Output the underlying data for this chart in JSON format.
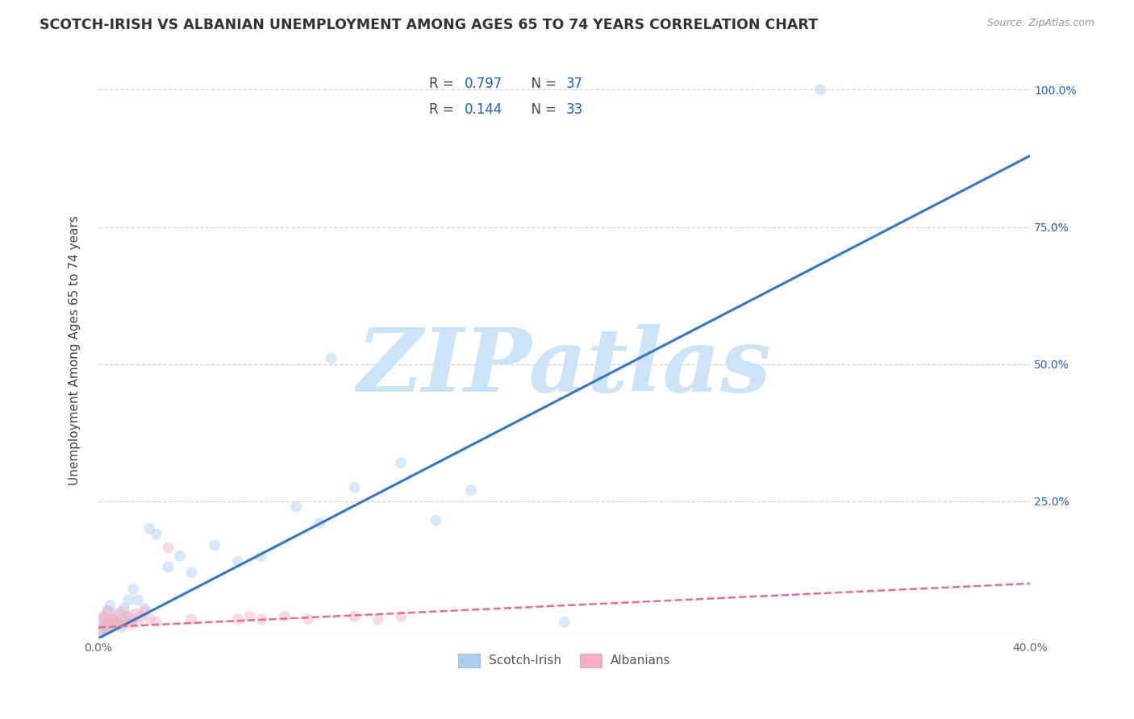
{
  "title": "SCOTCH-IRISH VS ALBANIAN UNEMPLOYMENT AMONG AGES 65 TO 74 YEARS CORRELATION CHART",
  "source": "Source: ZipAtlas.com",
  "ylabel": "Unemployment Among Ages 65 to 74 years",
  "xlim": [
    0.0,
    0.4
  ],
  "ylim": [
    0.0,
    1.05
  ],
  "xticks": [
    0.0,
    0.1,
    0.2,
    0.3,
    0.4
  ],
  "xticklabels": [
    "0.0%",
    "",
    "",
    "",
    "40.0%"
  ],
  "yticks": [
    0.0,
    0.25,
    0.5,
    0.75,
    1.0
  ],
  "yticklabels_left": [
    "",
    "",
    "",
    "",
    ""
  ],
  "yticklabels_right": [
    "",
    "25.0%",
    "50.0%",
    "75.0%",
    "100.0%"
  ],
  "background_color": "#ffffff",
  "grid_color": "#c8c8c8",
  "watermark_text": "ZIPatlas",
  "watermark_color": "#cce4f7",
  "scotch_irish_R": "0.797",
  "scotch_irish_N": "37",
  "albanian_R": "0.144",
  "albanian_N": "33",
  "scotch_irish_color": "#a8cef5",
  "albanian_color": "#f5afc0",
  "scotch_irish_line_color": "#3575c8",
  "albanian_line_color": "#e07090",
  "legend_color": "#2060c8",
  "scotch_irish_x": [
    0.001,
    0.002,
    0.002,
    0.003,
    0.003,
    0.004,
    0.004,
    0.005,
    0.005,
    0.006,
    0.007,
    0.008,
    0.009,
    0.01,
    0.011,
    0.012,
    0.013,
    0.015,
    0.017,
    0.02,
    0.022,
    0.025,
    0.03,
    0.035,
    0.04,
    0.05,
    0.06,
    0.07,
    0.085,
    0.095,
    0.1,
    0.11,
    0.13,
    0.145,
    0.16,
    0.2,
    0.31
  ],
  "scotch_irish_y": [
    0.01,
    0.02,
    0.035,
    0.015,
    0.04,
    0.025,
    0.05,
    0.02,
    0.06,
    0.035,
    0.025,
    0.03,
    0.045,
    0.02,
    0.055,
    0.04,
    0.07,
    0.09,
    0.07,
    0.055,
    0.2,
    0.19,
    0.13,
    0.15,
    0.12,
    0.17,
    0.14,
    0.15,
    0.24,
    0.21,
    0.51,
    0.275,
    0.32,
    0.215,
    0.27,
    0.03,
    1.0
  ],
  "albanian_x": [
    0.001,
    0.002,
    0.002,
    0.003,
    0.004,
    0.005,
    0.005,
    0.006,
    0.007,
    0.008,
    0.009,
    0.01,
    0.011,
    0.012,
    0.013,
    0.014,
    0.015,
    0.016,
    0.017,
    0.018,
    0.02,
    0.022,
    0.025,
    0.03,
    0.04,
    0.06,
    0.065,
    0.07,
    0.08,
    0.09,
    0.11,
    0.12,
    0.13
  ],
  "albanian_y": [
    0.015,
    0.025,
    0.04,
    0.035,
    0.05,
    0.02,
    0.03,
    0.035,
    0.045,
    0.03,
    0.025,
    0.035,
    0.05,
    0.03,
    0.04,
    0.025,
    0.035,
    0.045,
    0.03,
    0.04,
    0.05,
    0.035,
    0.03,
    0.165,
    0.035,
    0.035,
    0.04,
    0.035,
    0.04,
    0.035,
    0.04,
    0.035,
    0.04
  ],
  "scotch_irish_line_x": [
    0.0,
    0.4
  ],
  "scotch_irish_line_y": [
    0.0,
    0.88
  ],
  "albanian_line_x": [
    0.0,
    0.4
  ],
  "albanian_line_y": [
    0.02,
    0.1
  ],
  "marker_size": 100,
  "marker_alpha": 0.45,
  "line_alpha": 1.0
}
